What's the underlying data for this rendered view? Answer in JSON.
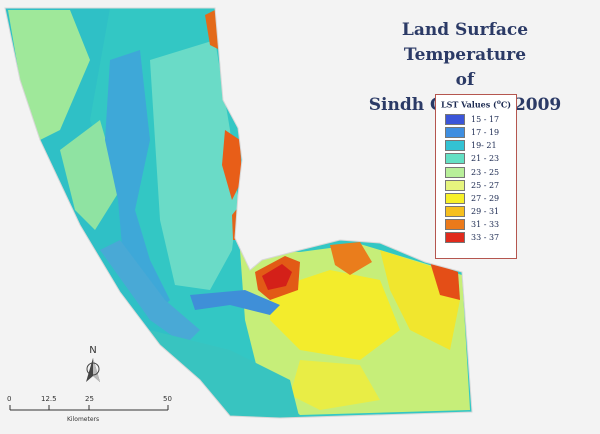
{
  "map": {
    "title_line1": "Land Surface Temperature",
    "title_line2": "of",
    "title_line3": "Sindh Coast in 2009",
    "colors": {
      "background": "#f3f3f3",
      "sea": "#2bc5c5",
      "deep_water": "#3aa7d8",
      "land_cool": "#5fd8c2",
      "land_mild": "#b8ee7a",
      "land_warm": "#f5ec2a",
      "hot": "#e85a12",
      "hottest": "#d8201c"
    }
  },
  "legend": {
    "title": "LST Values (",
    "title_unit_sup": "o",
    "title_unit": "C)",
    "classes": [
      {
        "label": "15 - 17",
        "color": "#3b55d8"
      },
      {
        "label": "17 - 19",
        "color": "#3f8ee0"
      },
      {
        "label": "19- 21",
        "color": "#33c2d3"
      },
      {
        "label": "21 - 23",
        "color": "#63e0c4"
      },
      {
        "label": "23 - 25",
        "color": "#b8ef9a"
      },
      {
        "label": "25 - 27",
        "color": "#e6f57e"
      },
      {
        "label": "27 - 29",
        "color": "#f7f028"
      },
      {
        "label": "29 - 31",
        "color": "#f6bf1e"
      },
      {
        "label": "31 - 33",
        "color": "#ec7a1a"
      },
      {
        "label": "33 - 37",
        "color": "#e02a1c"
      }
    ]
  },
  "north_arrow": {
    "letter": "N"
  },
  "scale_bar": {
    "labels": [
      "0",
      "12.5",
      "25",
      "50"
    ],
    "unit": "Kilometers"
  }
}
